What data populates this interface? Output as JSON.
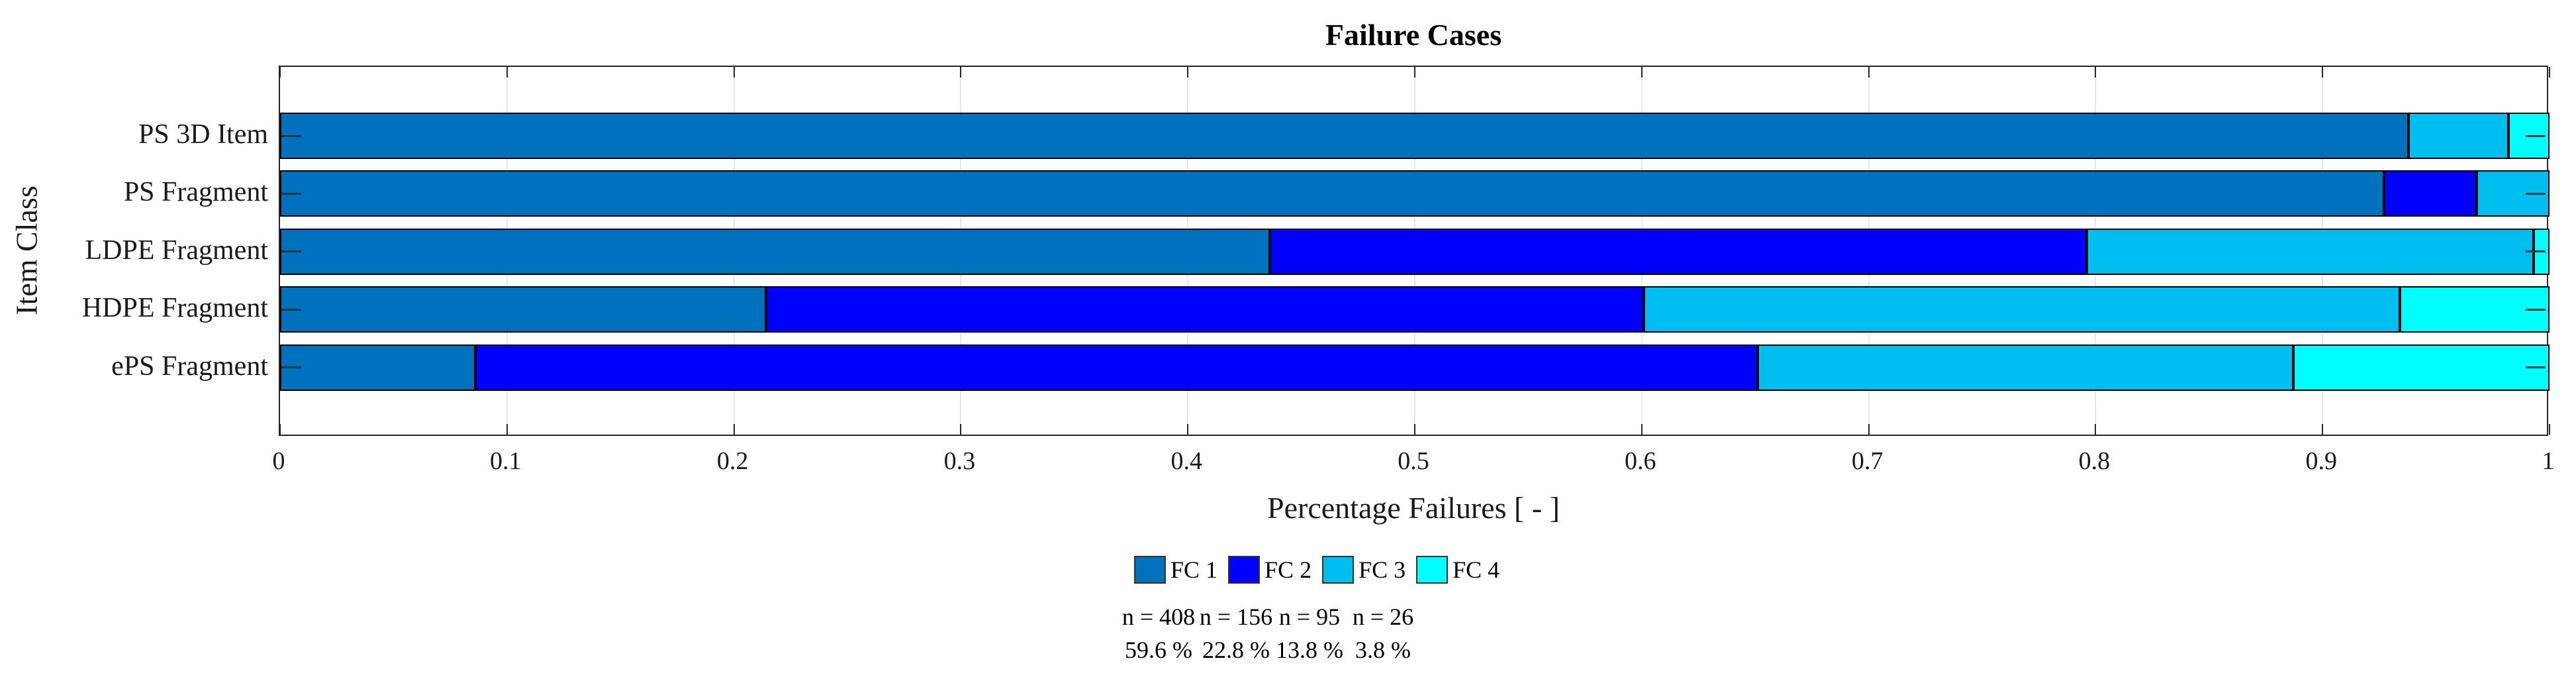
{
  "chart_data": {
    "type": "bar",
    "orientation": "horizontal",
    "stacked": true,
    "title": "Failure Cases",
    "xlabel": "Percentage Failures [ - ]",
    "ylabel": "Item Class",
    "xlim": [
      0,
      1
    ],
    "grid": "vertical-light",
    "legend_position": "below-center",
    "xticks": [
      0,
      0.1,
      0.2,
      0.3,
      0.4,
      0.5,
      0.6,
      0.7,
      0.8,
      0.9,
      1
    ],
    "xtick_labels": [
      "0",
      "0.1",
      "0.2",
      "0.3",
      "0.4",
      "0.5",
      "0.6",
      "0.7",
      "0.8",
      "0.9",
      "1"
    ],
    "categories": [
      "PS 3D Item",
      "PS Fragment",
      "LDPE Fragment",
      "HDPE Fragment",
      "ePS Fragment"
    ],
    "series": [
      {
        "name": "FC 1",
        "color": "#0072BD",
        "values": [
          0.938,
          0.927,
          0.436,
          0.214,
          0.086
        ]
      },
      {
        "name": "FC 2",
        "color": "#0000FF",
        "values": [
          0.0,
          0.041,
          0.36,
          0.387,
          0.565
        ]
      },
      {
        "name": "FC 3",
        "color": "#00BFF0",
        "values": [
          0.044,
          0.032,
          0.197,
          0.333,
          0.236
        ]
      },
      {
        "name": "FC 4",
        "color": "#00FFFF",
        "values": [
          0.018,
          0.0,
          0.007,
          0.066,
          0.113
        ]
      }
    ]
  },
  "legend": {
    "entries": [
      {
        "label": "FC 1",
        "color": "#0072BD"
      },
      {
        "label": "FC 2",
        "color": "#0000FF"
      },
      {
        "label": "FC 3",
        "color": "#00BFF0"
      },
      {
        "label": "FC 4",
        "color": "#00FFFF"
      }
    ]
  },
  "annotations": {
    "columns": [
      {
        "n": "n = 408",
        "pct": "59.6 %"
      },
      {
        "n": "n = 156",
        "pct": "22.8 %"
      },
      {
        "n": "n = 95",
        "pct": "13.8 %"
      },
      {
        "n": "n = 26",
        "pct": "3.8 %"
      }
    ]
  },
  "colors": {
    "axis": "#262626",
    "gridline": "#E8E8E8",
    "bar_edge": "#000000",
    "background": "#FFFFFF"
  }
}
